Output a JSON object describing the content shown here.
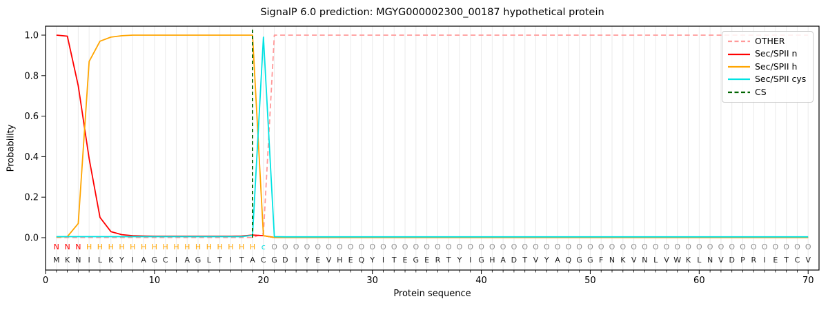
{
  "chart_data": {
    "type": "line",
    "title": "SignalP 6.0 prediction: MGYG000002300_00187 hypothetical protein",
    "xlabel": "Protein sequence",
    "ylabel": "Probability",
    "xlim": [
      0,
      71
    ],
    "ylim": [
      -0.16,
      1.045
    ],
    "xticks": [
      "0",
      "10",
      "20",
      "30",
      "40",
      "50",
      "60",
      "70"
    ],
    "yticks": [
      "0.0",
      "0.2",
      "0.4",
      "0.6",
      "0.8",
      "1.0"
    ],
    "grid": "vertical gridline at every residue position 1-70",
    "legend_position": "upper right",
    "x_positions": "residues 1 to 70",
    "series": [
      {
        "name": "OTHER",
        "color": "#ff9999",
        "dashed": true,
        "values": [
          0.001,
          0.001,
          0.001,
          0.001,
          0.001,
          0.001,
          0.001,
          0.001,
          0.001,
          0.001,
          0.001,
          0.001,
          0.001,
          0.001,
          0.001,
          0.001,
          0.001,
          0.001,
          0.001,
          0.02,
          1.0,
          1.0,
          1.0,
          1.0,
          1.0,
          1.0,
          1.0,
          1.0,
          1.0,
          1.0,
          1.0,
          1.0,
          1.0,
          1.0,
          1.0,
          1.0,
          1.0,
          1.0,
          1.0,
          1.0,
          1.0,
          1.0,
          1.0,
          1.0,
          1.0,
          1.0,
          1.0,
          1.0,
          1.0,
          1.0,
          1.0,
          1.0,
          1.0,
          1.0,
          1.0,
          1.0,
          1.0,
          1.0,
          1.0,
          1.0,
          1.0,
          1.0,
          1.0,
          1.0,
          1.0,
          1.0,
          1.0,
          1.0,
          1.0,
          1.0
        ]
      },
      {
        "name": "Sec/SPII n",
        "color": "#ff0000",
        "dashed": false,
        "values": [
          1.0,
          0.995,
          0.75,
          0.39,
          0.1,
          0.03,
          0.015,
          0.01,
          0.008,
          0.007,
          0.007,
          0.007,
          0.007,
          0.007,
          0.007,
          0.007,
          0.007,
          0.008,
          0.013,
          0.01,
          0.001,
          0.001,
          0.001,
          0.001,
          0.001,
          0.001,
          0.001,
          0.001,
          0.001,
          0.001,
          0.001,
          0.001,
          0.001,
          0.001,
          0.001,
          0.001,
          0.001,
          0.001,
          0.001,
          0.001,
          0.001,
          0.001,
          0.001,
          0.001,
          0.001,
          0.001,
          0.001,
          0.001,
          0.001,
          0.001,
          0.001,
          0.001,
          0.001,
          0.001,
          0.001,
          0.001,
          0.001,
          0.001,
          0.001,
          0.001,
          0.001,
          0.001,
          0.001,
          0.001,
          0.001,
          0.001,
          0.001,
          0.001,
          0.001,
          0.001
        ]
      },
      {
        "name": "Sec/SPII h",
        "color": "#ffa500",
        "dashed": false,
        "values": [
          0.003,
          0.005,
          0.07,
          0.87,
          0.97,
          0.99,
          0.997,
          1.0,
          1.0,
          1.0,
          1.0,
          1.0,
          1.0,
          1.0,
          1.0,
          1.0,
          1.0,
          1.0,
          1.0,
          0.01,
          0.001,
          0.001,
          0.001,
          0.001,
          0.001,
          0.001,
          0.001,
          0.001,
          0.001,
          0.001,
          0.001,
          0.001,
          0.001,
          0.001,
          0.001,
          0.001,
          0.001,
          0.001,
          0.001,
          0.001,
          0.001,
          0.001,
          0.001,
          0.001,
          0.001,
          0.001,
          0.001,
          0.001,
          0.001,
          0.001,
          0.001,
          0.001,
          0.001,
          0.001,
          0.001,
          0.001,
          0.001,
          0.001,
          0.001,
          0.001,
          0.001,
          0.001,
          0.001,
          0.001,
          0.001,
          0.001,
          0.001,
          0.001,
          0.001,
          0.001
        ]
      },
      {
        "name": "Sec/SPII cys",
        "color": "#00e3e3",
        "dashed": false,
        "values": [
          0.005,
          0.005,
          0.005,
          0.005,
          0.005,
          0.005,
          0.005,
          0.005,
          0.005,
          0.005,
          0.005,
          0.005,
          0.005,
          0.005,
          0.005,
          0.005,
          0.005,
          0.005,
          0.012,
          0.99,
          0.005,
          0.004,
          0.004,
          0.004,
          0.004,
          0.004,
          0.004,
          0.004,
          0.004,
          0.004,
          0.004,
          0.004,
          0.004,
          0.004,
          0.004,
          0.004,
          0.004,
          0.004,
          0.004,
          0.004,
          0.004,
          0.004,
          0.004,
          0.004,
          0.004,
          0.004,
          0.004,
          0.004,
          0.004,
          0.004,
          0.004,
          0.004,
          0.004,
          0.004,
          0.004,
          0.004,
          0.004,
          0.004,
          0.004,
          0.004,
          0.004,
          0.004,
          0.004,
          0.004,
          0.004,
          0.004,
          0.004,
          0.004,
          0.004,
          0.004
        ]
      },
      {
        "name": "CS",
        "color": "#006400",
        "dashed": true,
        "type": "vline",
        "x": 19
      }
    ],
    "sequence": "MKNILKYIAGCIAGLTITACGDIYEVHEQYITEGERTYIGHADTVYAQGGFNKVNLVWKLNVDPRIETCV",
    "residue_annotations": "NNNHHHHHHHHHHHHHHHHcOOOOOOOOOOOOOOOOOOOOOOOOOOOOOOOOOOOOOOOOOOOOOOOOOO",
    "annotation_colors": {
      "N": "#ff0000",
      "H": "#ffa500",
      "c": "#00dede",
      "O": "#8c8c8c"
    },
    "sequence_color": "#1c1c1c",
    "grid_color": "#eaeaea",
    "spine_color": "#000000",
    "background_color": "#ffffff"
  }
}
